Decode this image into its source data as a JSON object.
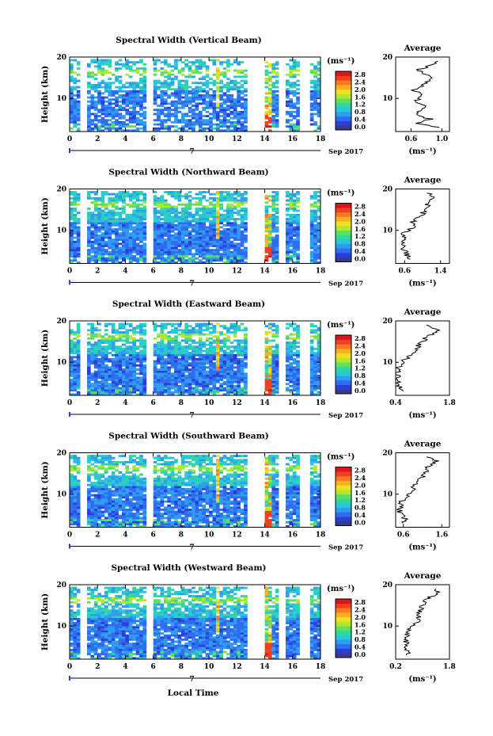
{
  "figure": {
    "xlabel": "Local Time",
    "date_label": "Sep 2017",
    "date_marker": "7",
    "average_title": "Average",
    "unit": "(ms⁻¹)"
  },
  "colorbar": {
    "ticks": [
      "0.0",
      "0.4",
      "0.8",
      "1.2",
      "1.6",
      "2.0",
      "2.4",
      "2.8"
    ],
    "colors": [
      "#3a3a8c",
      "#2a3fd8",
      "#2f6cf0",
      "#2f9cf0",
      "#27c8d8",
      "#30d8a0",
      "#60e060",
      "#b0e830",
      "#f0e020",
      "#f8b020",
      "#f87a20",
      "#f04020",
      "#d81818"
    ]
  },
  "chart_data": [
    {
      "type": "heatmap",
      "title": "Spectral Width (Vertical Beam)",
      "ylabel": "Height (km)",
      "xlim": [
        0,
        18
      ],
      "ylim": [
        2,
        20
      ],
      "xticks": [
        "0",
        "2",
        "4",
        "6",
        "8",
        "10",
        "12",
        "14",
        "16",
        "18"
      ],
      "yticks": [
        "10",
        "20"
      ],
      "profile": {
        "xticks": [
          "0.6",
          "1.0"
        ],
        "xlim": [
          0.4,
          1.1
        ],
        "heights": [
          3,
          4,
          5,
          6,
          7,
          8,
          9,
          10,
          11,
          12,
          13,
          14,
          15,
          16,
          17,
          18,
          19
        ],
        "values": [
          0.95,
          0.7,
          0.85,
          0.65,
          0.7,
          0.8,
          0.65,
          0.7,
          0.75,
          0.6,
          0.75,
          0.8,
          0.9,
          0.75,
          0.7,
          0.85,
          0.95
        ]
      }
    },
    {
      "type": "heatmap",
      "title": "Spectral Width (Northward Beam)",
      "ylabel": "Height (km)",
      "xlim": [
        0,
        18
      ],
      "ylim": [
        2,
        20
      ],
      "xticks": [
        "0",
        "2",
        "4",
        "6",
        "8",
        "10",
        "12",
        "14",
        "16",
        "18"
      ],
      "yticks": [
        "10",
        "20"
      ],
      "profile": {
        "xticks": [
          "0.6",
          "1.4"
        ],
        "xlim": [
          0.4,
          1.6
        ],
        "heights": [
          3,
          4,
          5,
          6,
          7,
          8,
          9,
          10,
          11,
          12,
          13,
          14,
          15,
          16,
          17,
          18,
          19
        ],
        "values": [
          0.75,
          0.65,
          0.6,
          0.55,
          0.55,
          0.6,
          0.55,
          0.7,
          0.8,
          0.75,
          0.9,
          1.0,
          1.05,
          1.1,
          1.2,
          1.3,
          1.1
        ]
      }
    },
    {
      "type": "heatmap",
      "title": "Spectral Width (Eastward Beam)",
      "ylabel": "Height (km)",
      "xlim": [
        0,
        18
      ],
      "ylim": [
        2,
        20
      ],
      "xticks": [
        "0",
        "2",
        "4",
        "6",
        "8",
        "10",
        "12",
        "14",
        "16",
        "18"
      ],
      "yticks": [
        "10",
        "20"
      ],
      "profile": {
        "xticks": [
          "0.4",
          "1.8"
        ],
        "xlim": [
          0.4,
          1.8
        ],
        "heights": [
          3,
          4,
          5,
          6,
          7,
          8,
          9,
          10,
          11,
          12,
          13,
          14,
          15,
          16,
          17,
          18,
          19
        ],
        "values": [
          0.6,
          0.5,
          0.45,
          0.45,
          0.45,
          0.45,
          0.5,
          0.55,
          0.7,
          0.85,
          0.95,
          1.0,
          1.1,
          1.2,
          1.35,
          1.5,
          1.2
        ]
      }
    },
    {
      "type": "heatmap",
      "title": "Spectral Width (Southward Beam)",
      "ylabel": "Height (km)",
      "xlim": [
        0,
        18
      ],
      "ylim": [
        2,
        20
      ],
      "xticks": [
        "0",
        "2",
        "4",
        "6",
        "8",
        "10",
        "12",
        "14",
        "16",
        "18"
      ],
      "yticks": [
        "10",
        "20"
      ],
      "profile": {
        "xticks": [
          "0.6",
          "1.6"
        ],
        "xlim": [
          0.4,
          1.8
        ],
        "heights": [
          3,
          4,
          5,
          6,
          7,
          8,
          9,
          10,
          11,
          12,
          13,
          14,
          15,
          16,
          17,
          18,
          19
        ],
        "values": [
          0.6,
          0.65,
          0.55,
          0.5,
          0.55,
          0.55,
          0.6,
          0.75,
          0.85,
          0.9,
          1.0,
          1.1,
          1.2,
          1.15,
          1.3,
          1.45,
          1.2
        ]
      }
    },
    {
      "type": "heatmap",
      "title": "Spectral Width (Westward Beam)",
      "ylabel": "Height (km)",
      "xlim": [
        0,
        18
      ],
      "ylim": [
        2,
        20
      ],
      "xticks": [
        "0",
        "2",
        "4",
        "6",
        "8",
        "10",
        "12",
        "14",
        "16",
        "18"
      ],
      "yticks": [
        "10",
        "20"
      ],
      "profile": {
        "xticks": [
          "0.2",
          "1.8"
        ],
        "xlim": [
          0.2,
          1.8
        ],
        "heights": [
          3,
          4,
          5,
          6,
          7,
          8,
          9,
          10,
          11,
          12,
          13,
          14,
          15,
          16,
          17,
          18,
          19
        ],
        "values": [
          0.6,
          0.55,
          0.5,
          0.5,
          0.5,
          0.55,
          0.55,
          0.7,
          0.85,
          0.85,
          0.9,
          0.95,
          1.0,
          1.05,
          1.2,
          1.5,
          1.4
        ]
      }
    }
  ]
}
